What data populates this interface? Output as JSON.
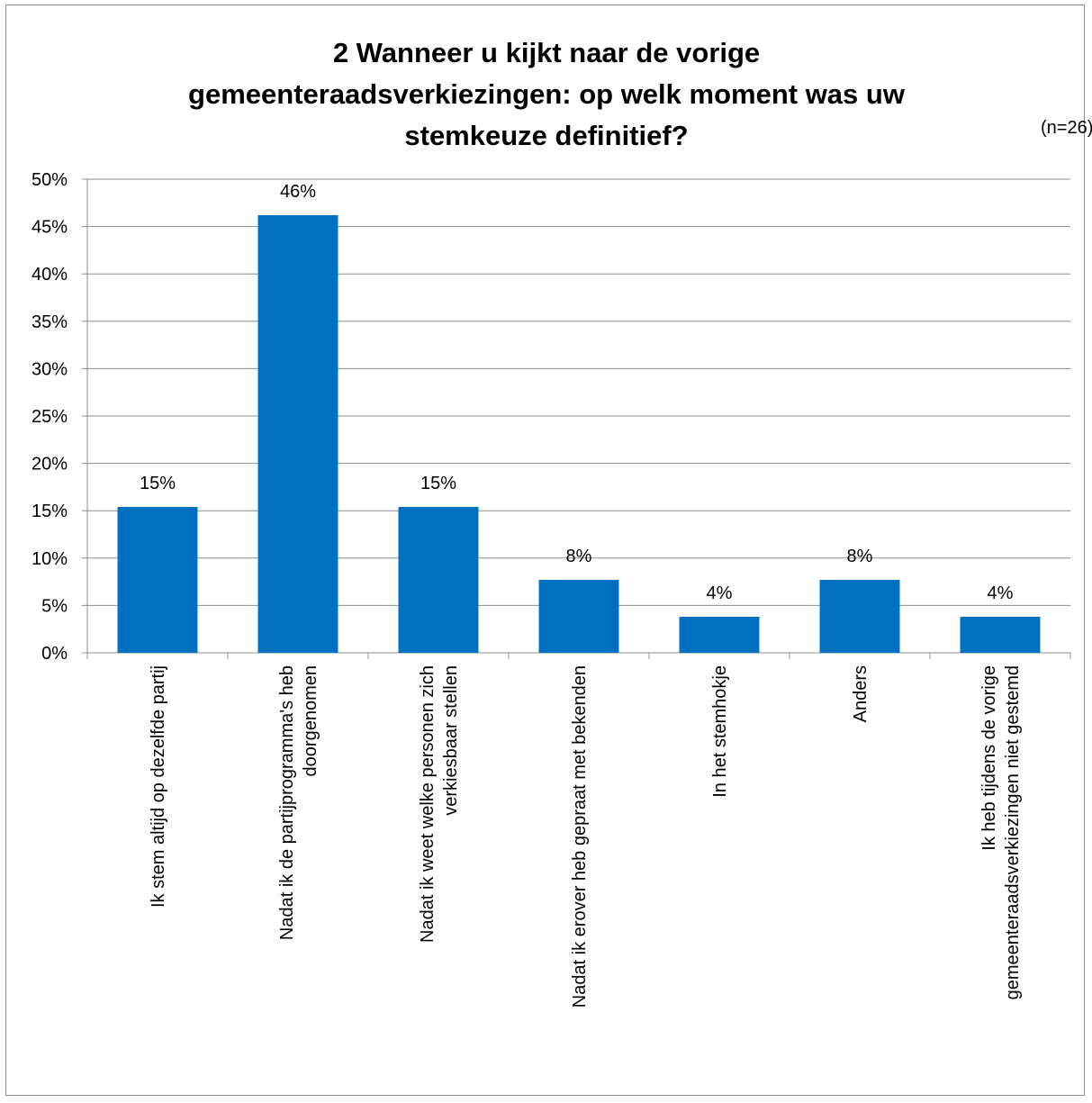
{
  "chart_data": {
    "type": "bar",
    "title_lines": [
      "2 Wanneer u kijkt naar de vorige",
      "gemeenteraadsverkiezingen: op welk moment was uw",
      "stemkeuze definitief?"
    ],
    "note": "(n=26)",
    "categories": [
      [
        "Ik stem altijd op dezelfde partij"
      ],
      [
        "Nadat ik de partijprogramma's heb",
        "doorgenomen"
      ],
      [
        "Nadat ik weet welke personen zich",
        "verkiesbaar stellen"
      ],
      [
        "Nadat ik erover heb gepraat met bekenden"
      ],
      [
        "In het stemhokje"
      ],
      [
        "Anders"
      ],
      [
        "Ik heb tijdens de vorige",
        "gemeenteraadsverkiezingen niet gestemd"
      ]
    ],
    "values": [
      15.4,
      46.2,
      15.4,
      7.7,
      3.8,
      7.7,
      3.8
    ],
    "data_labels": [
      "15%",
      "46%",
      "15%",
      "8%",
      "4%",
      "8%",
      "4%"
    ],
    "y_ticks": [
      "0%",
      "5%",
      "10%",
      "15%",
      "20%",
      "25%",
      "30%",
      "35%",
      "40%",
      "45%",
      "50%"
    ],
    "ylim": [
      0,
      50
    ],
    "grid": true,
    "bar_color": "#0070c0",
    "grid_color": "#8c8c8c"
  }
}
